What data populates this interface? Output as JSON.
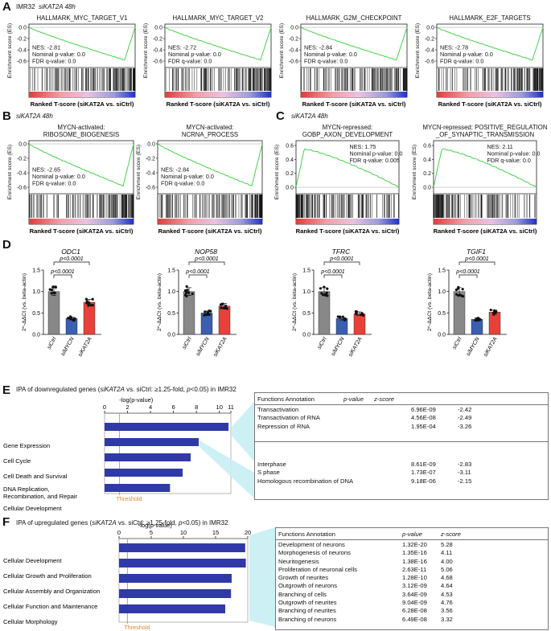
{
  "panel_letters": {
    "A": "A",
    "B": "B",
    "C": "C",
    "D": "D",
    "E": "E",
    "F": "F"
  },
  "panelA": {
    "header_cell": "IMR32",
    "header_cond": "siKAT2A 48h",
    "plots": [
      {
        "title": "HALLMARK_MYC_TARGET_V1",
        "nes": "NES: -2.81",
        "p": "Nominal p-value: 0.0",
        "fdr": "FDR q-value: 0.0"
      },
      {
        "title": "HALLMARK_MYC_TARGET_V2",
        "nes": "NES: -2.72",
        "p": "Nominal p-value: 0.0",
        "fdr": "FDR q-value: 0.0"
      },
      {
        "title": "HALLMARK_G2M_CHECKPOINT",
        "nes": "NES: -2.84",
        "p": "Nominal p-value: 0.0",
        "fdr": "FDR q-value: 0.0"
      },
      {
        "title": "HALLMARK_E2F_TARGETS",
        "nes": "NES: -2.78",
        "p": "Nominal p-value: 0.0",
        "fdr": "FDR q-value: 0.0"
      }
    ]
  },
  "panelB": {
    "header": "siKAT2A 48h",
    "plots": [
      {
        "title1": "MYCN-activated:",
        "title2": "RIBOSOME_BIOGENESIS",
        "nes": "NES: -2.65",
        "p": "Nominal p-value: 0.0",
        "fdr": "FDR q-value: 0.0"
      },
      {
        "title1": "MYCN-activated:",
        "title2": "NCRNA_PROCESS",
        "nes": "NES: -2.84",
        "p": "Nominal p-value: 0.0",
        "fdr": "FDR q-value: 0.0"
      }
    ]
  },
  "panelC": {
    "header": "siKAT2A 48h",
    "plots": [
      {
        "title1": "MYCN-repressed:",
        "title2": "GOBP_AXON_DEVELOPMENT",
        "nes": "NES: 1.75",
        "p": "Nominal p-value: 0.0",
        "fdr": "FDR q-value: 0.005"
      },
      {
        "title1": "MYCN-repressed: POSITIVE_REGULATION",
        "title2": "_OF_SYNAPTIC_TRANSMISSION",
        "nes": "NES: 2.11",
        "p": "Nominal p-value: 0.0",
        "fdr": "FDR q-value: 0.0"
      }
    ]
  },
  "gsea_common": {
    "ylabel": "Enrichment score (ES)",
    "xlabel": "Ranked T-score (siKAT2A vs. siCtrl)",
    "neg_ticks": [
      "0.0",
      "-0.2",
      "-0.4",
      "-0.6"
    ],
    "pos_ticks": [
      "0.6",
      "0.4",
      "0.2",
      "0.0"
    ]
  },
  "panelD": {
    "ylabel": "2^-ΔΔCt (vs. beta-actin)",
    "categories": [
      "siCtrl",
      "siMYCN",
      "siKAT2A"
    ],
    "colors": [
      "#888888",
      "#3a5fb0",
      "#e8413a"
    ],
    "pvalue": "p<0.0001",
    "chart_data": [
      {
        "type": "bar",
        "title": "ODC1",
        "categories": [
          "siCtrl",
          "siMYCN",
          "siKAT2A"
        ],
        "values": [
          1.0,
          0.37,
          0.75
        ],
        "ylim": [
          0,
          1.5
        ],
        "yticks": [
          "0.0",
          "0.5",
          "1.0",
          "1.5"
        ]
      },
      {
        "type": "bar",
        "title": "NOP58",
        "categories": [
          "siCtrl",
          "siMYCN",
          "siKAT2A"
        ],
        "values": [
          1.0,
          0.5,
          0.66
        ],
        "ylim": [
          0,
          1.5
        ],
        "yticks": [
          "0.0",
          "0.5",
          "1.0",
          "1.5"
        ]
      },
      {
        "type": "bar",
        "title": "TFRC",
        "categories": [
          "siCtrl",
          "siMYCN",
          "siKAT2A"
        ],
        "values": [
          1.0,
          0.37,
          0.48
        ],
        "ylim": [
          0,
          1.5
        ],
        "yticks": [
          "0.0",
          "0.5",
          "1.0",
          "1.5"
        ]
      },
      {
        "type": "bar",
        "title": "TGIF1",
        "categories": [
          "siCtrl",
          "siMYCN",
          "siKAT2A"
        ],
        "values": [
          1.0,
          0.35,
          0.52
        ],
        "ylim": [
          0,
          1.5
        ],
        "yticks": [
          "0.0",
          "0.5",
          "1.0",
          "1.5"
        ]
      }
    ]
  },
  "panelE": {
    "title_pre": "IPA of downregulated genes (",
    "title_gene": "siKAT2A",
    "title_mid": " vs. siCtrl: ≥1.25-fold, ",
    "title_p": "p",
    "title_post": "<0.05) in IMR32",
    "axis_label": "-log(p-value)",
    "threshold": "Threshold",
    "chart_data": {
      "type": "bar",
      "orientation": "horizontal",
      "categories": [
        "Gene Expression",
        "Cell Cycle",
        "Cell Death and Survival",
        "DNA Replication, Recombination, and Repair",
        "Cellular Development"
      ],
      "values": [
        10.8,
        8.2,
        7.5,
        6.8,
        5.7
      ],
      "xlim": [
        0,
        11
      ],
      "ticks": [
        "0",
        "2",
        "4",
        "6",
        "8",
        "10",
        "11"
      ],
      "threshold": 1.3
    },
    "labels": [
      "Gene Expression",
      "Cell Cycle",
      "Cell Death and Survival",
      "DNA Replication,",
      "Recombination, and Repair",
      "Cellular Development"
    ],
    "table": {
      "headers": [
        "Functions Annotation",
        "p-value",
        "z-score"
      ],
      "rows1": [
        [
          "Transactivation",
          "6.96E-09",
          "-2.42"
        ],
        [
          "Transactivation of RNA",
          "4.56E-08",
          "-2.49"
        ],
        [
          "Repression of RNA",
          "1.95E-04",
          "-3.26"
        ]
      ],
      "rows2": [
        [
          "Interphase",
          "8.61E-09",
          "-2.83"
        ],
        [
          "S phase",
          "1.73E-07",
          "-3.11"
        ],
        [
          "Homologous recombination of DNA",
          "9.18E-06",
          "-2.15"
        ]
      ]
    }
  },
  "panelF": {
    "title_pre": "IPA of upregulated genes (",
    "title_gene": "siKAT2A",
    "title_mid": " vs. siCtrl: ≥1.25-fold, ",
    "title_p": "p",
    "title_post": "<0.05) in IMR32",
    "axis_label": "-log(p-value)",
    "threshold": "Threshold",
    "chart_data": {
      "type": "bar",
      "orientation": "horizontal",
      "categories": [
        "Cellular Development",
        "Cellular Growth and Proliferation",
        "Cellular Assembly and Organization",
        "Cellular Function and Maintenance",
        "Cellular Morphology"
      ],
      "values": [
        19.6,
        19.7,
        17.5,
        17.4,
        16.5
      ],
      "xlim": [
        0,
        20
      ],
      "ticks": [
        "0",
        "5",
        "10",
        "15",
        "20"
      ],
      "threshold": 1.3
    },
    "table": {
      "headers": [
        "Functions Annotation",
        "p-value",
        "z-score"
      ],
      "rows": [
        [
          "Development of neurons",
          "1.32E-20",
          "5.28"
        ],
        [
          "Morphogenesis of neurons",
          "1.35E-16",
          "4.11"
        ],
        [
          "Neuritogenesis",
          "1.38E-16",
          "4.00"
        ],
        [
          "Proliferation of neuronal cells",
          "2.63E-11",
          "5.06"
        ],
        [
          "Growth of neurites",
          "1.28E-10",
          "4.68"
        ],
        [
          "Outgrowth of neurons",
          "3.12E-09",
          "4.64"
        ],
        [
          "Branching of cells",
          "3.64E-09",
          "4.53"
        ],
        [
          "Outgrowth of neurites",
          "9.04E-09",
          "4.76"
        ],
        [
          "Branching of neurites",
          "6.28E-08",
          "3.56"
        ],
        [
          "Branching of neurons",
          "6.49E-08",
          "3.32"
        ]
      ]
    }
  }
}
